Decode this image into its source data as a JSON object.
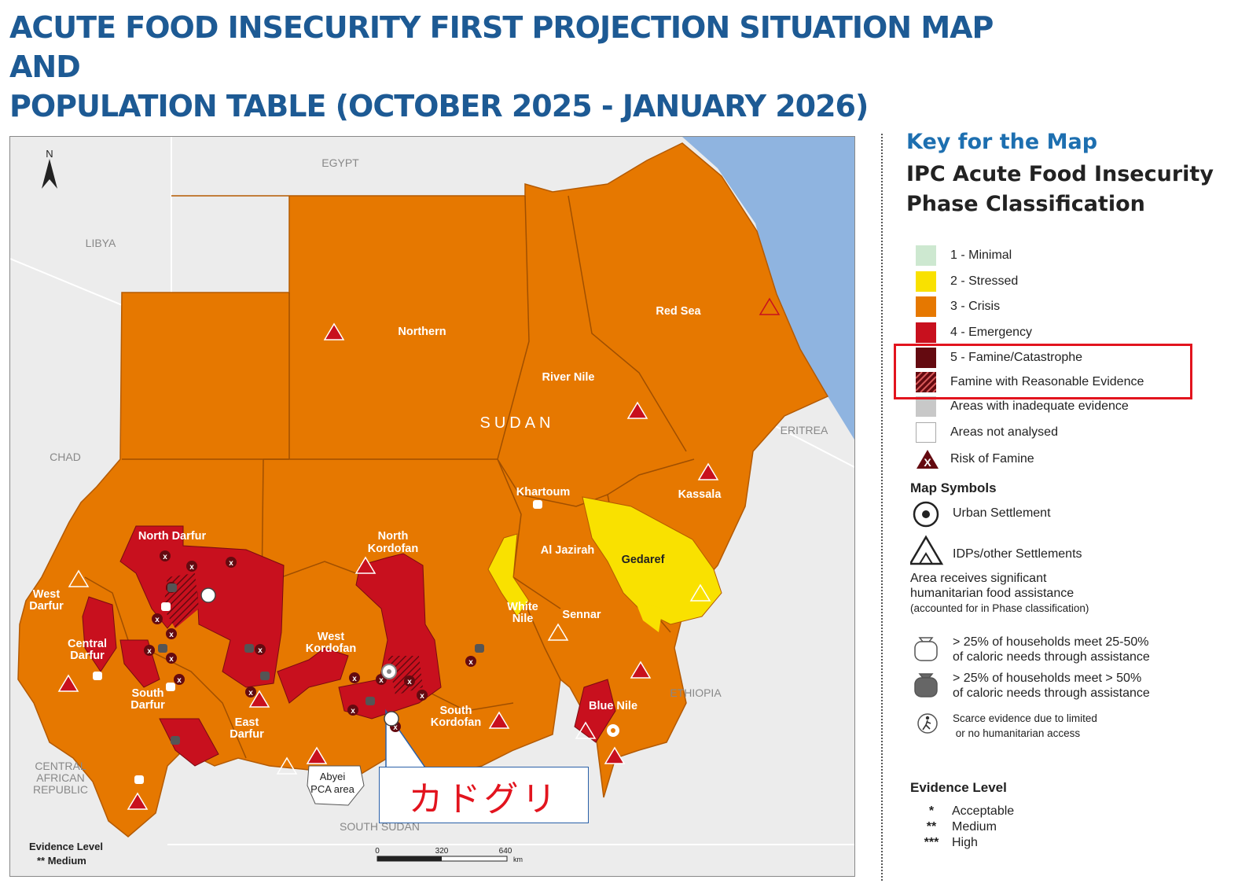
{
  "title_line1": "ACUTE FOOD INSECURITY FIRST PROJECTION SITUATION MAP AND",
  "title_line2": "POPULATION TABLE (OCTOBER 2025 - JANUARY 2026)",
  "map": {
    "north_arrow": "N",
    "country_label": "SUDAN",
    "neighbors": {
      "egypt": "EGYPT",
      "libya": "LIBYA",
      "chad": "CHAD",
      "car": [
        "CENTRAL",
        "AFRICAN",
        "REPUBLIC"
      ],
      "south_sudan": "SOUTH SUDAN",
      "eritrea": "ERITREA",
      "ethiopia": "ETHIOPIA"
    },
    "states": {
      "northern": "Northern",
      "red_sea": "Red Sea",
      "river_nile": "River Nile",
      "khartoum": "Khartoum",
      "kassala": "Kassala",
      "north_darfur": "North Darfur",
      "north_kordofan": [
        "North",
        "Kordofan"
      ],
      "al_jazirah": "Al Jazirah",
      "gedaref": "Gedaref",
      "west_darfur": [
        "West",
        "Darfur"
      ],
      "central_darfur": [
        "Central",
        "Darfur"
      ],
      "south_darfur": [
        "South",
        "Darfur"
      ],
      "west_kordofan": [
        "West",
        "Kordofan"
      ],
      "white_nile": [
        "White",
        "Nile"
      ],
      "sennar": "Sennar",
      "east_darfur": [
        "East",
        "Darfur"
      ],
      "south_kordofan": [
        "South",
        "Kordofan"
      ],
      "blue_nile": "Blue Nile"
    },
    "abyei": [
      "Abyei",
      "PCA area"
    ],
    "evidence_level": {
      "title": "Evidence Level",
      "value": "** Medium"
    },
    "scale": {
      "ticks": [
        "0",
        "320",
        "640"
      ],
      "unit": "km"
    }
  },
  "callout": {
    "text": "カドグリ",
    "border_color": "#2a60a8",
    "text_color": "#e2141e"
  },
  "key": {
    "title": "Key for the Map",
    "subtitle": [
      "IPC Acute Food Insecurity",
      "Phase Classification"
    ],
    "phases": [
      {
        "label": "1 - Minimal",
        "color": "#cde8d0"
      },
      {
        "label": "2 - Stressed",
        "color": "#f9e100"
      },
      {
        "label": "3 - Crisis",
        "color": "#e67800"
      },
      {
        "label": "4 - Emergency",
        "color": "#c8101e"
      },
      {
        "label": "5 - Famine/Catastrophe",
        "color": "#640a10"
      },
      {
        "label": "Famine with Reasonable Evidence",
        "color": "#640a10"
      },
      {
        "label": "Areas with inadequate evidence",
        "color": "#c8c8c8"
      },
      {
        "label": "Areas not analysed",
        "color": "#ffffff"
      },
      {
        "label": "Risk of Famine",
        "color": "#640a10"
      }
    ],
    "highlight_color": "#e2141e",
    "map_symbols_title": "Map Symbols",
    "symbols": {
      "urban": "Urban Settlement",
      "idp": "IDPs/other Settlements",
      "assistance_head": [
        "Area receives significant",
        "humanitarian food assistance"
      ],
      "assistance_note": "(accounted for in Phase classification)",
      "bag_light": [
        "> 25% of households meet 25-50%",
        "of caloric needs through assistance"
      ],
      "bag_dark": [
        "> 25% of households meet > 50%",
        "of caloric needs through assistance"
      ],
      "scarce": [
        "Scarce evidence due to limited",
        "or no humanitarian access"
      ]
    },
    "evidence": {
      "title": "Evidence Level",
      "levels": [
        {
          "stars": "*",
          "label": "Acceptable"
        },
        {
          "stars": "**",
          "label": "Medium"
        },
        {
          "stars": "***",
          "label": "High"
        }
      ]
    }
  }
}
